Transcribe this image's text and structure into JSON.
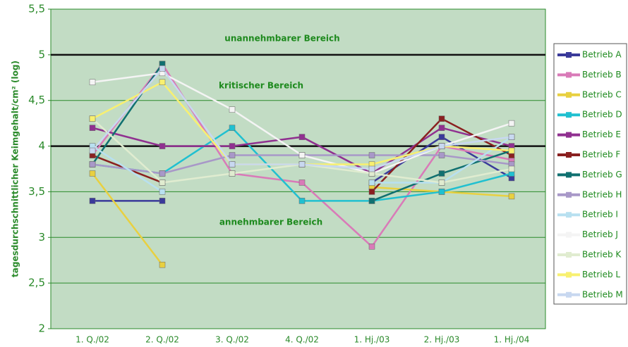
{
  "chart_data": {
    "type": "line",
    "y_label": "tagesdurchschnittlicher Keimgehalt/cm² (log)",
    "categories": [
      "1. Q./02",
      "2. Q./02",
      "3. Q./02",
      "4. Q./02",
      "1. Hj./03",
      "2. Hj./03",
      "1. Hj./04"
    ],
    "ylim": [
      2,
      5.5
    ],
    "yticks": [
      2,
      {
        "value": 2.5,
        "label": "2,5"
      },
      3,
      {
        "value": 3.5,
        "label": "3,5"
      },
      4,
      {
        "value": 4.5,
        "label": "4,5"
      },
      5,
      {
        "value": 5.5,
        "label": "5,5"
      }
    ],
    "grid": true,
    "thresholds": [
      5,
      4
    ],
    "annotations": [
      "unannehmbarer Bereich",
      "kritischer Bereich",
      "annehmbarer Bereich"
    ],
    "legend": "right",
    "series": [
      {
        "name": "Betrieb A",
        "color": "#3a3a9a",
        "values": [
          3.4,
          3.4,
          null,
          null,
          3.6,
          4.1,
          3.65
        ]
      },
      {
        "name": "Betrieb B",
        "color": "#d97ab8",
        "values": [
          3.9,
          4.9,
          3.7,
          3.6,
          2.9,
          4.0,
          3.85
        ]
      },
      {
        "name": "Betrieb C",
        "color": "#e8d040",
        "values": [
          3.7,
          2.7,
          null,
          null,
          3.55,
          3.5,
          3.45
        ]
      },
      {
        "name": "Betrieb D",
        "color": "#20c0d0",
        "values": [
          3.8,
          3.7,
          4.2,
          3.4,
          3.4,
          3.5,
          3.7
        ]
      },
      {
        "name": "Betrieb E",
        "color": "#903090",
        "values": [
          4.2,
          4.0,
          4.0,
          4.1,
          3.7,
          4.2,
          4.0
        ]
      },
      {
        "name": "Betrieb F",
        "color": "#8a2020",
        "values": [
          3.9,
          3.6,
          null,
          null,
          3.5,
          4.3,
          3.9
        ]
      },
      {
        "name": "Betrieb G",
        "color": "#107070",
        "values": [
          3.8,
          4.9,
          null,
          null,
          3.4,
          3.7,
          3.95
        ]
      },
      {
        "name": "Betrieb H",
        "color": "#a898c8",
        "values": [
          3.8,
          3.7,
          3.9,
          3.9,
          3.9,
          3.9,
          3.8
        ]
      },
      {
        "name": "Betrieb I",
        "color": "#b8e0f0",
        "values": [
          4.0,
          3.5,
          null,
          null,
          3.6,
          3.6,
          4.1
        ]
      },
      {
        "name": "Betrieb J",
        "color": "#f4f4f4",
        "values": [
          4.7,
          4.8,
          4.4,
          3.9,
          3.7,
          4.0,
          4.25
        ]
      },
      {
        "name": "Betrieb K",
        "color": "#e0ecd0",
        "values": [
          4.3,
          3.6,
          3.7,
          3.8,
          3.7,
          3.6,
          3.75
        ]
      },
      {
        "name": "Betrieb L",
        "color": "#f8f070",
        "values": [
          4.3,
          4.7,
          3.8,
          3.8,
          3.8,
          4.0,
          3.95
        ]
      },
      {
        "name": "Betrieb M",
        "color": "#c8d8f0",
        "values": [
          3.95,
          4.85,
          3.8,
          3.8,
          3.75,
          4.0,
          4.1
        ]
      }
    ]
  }
}
